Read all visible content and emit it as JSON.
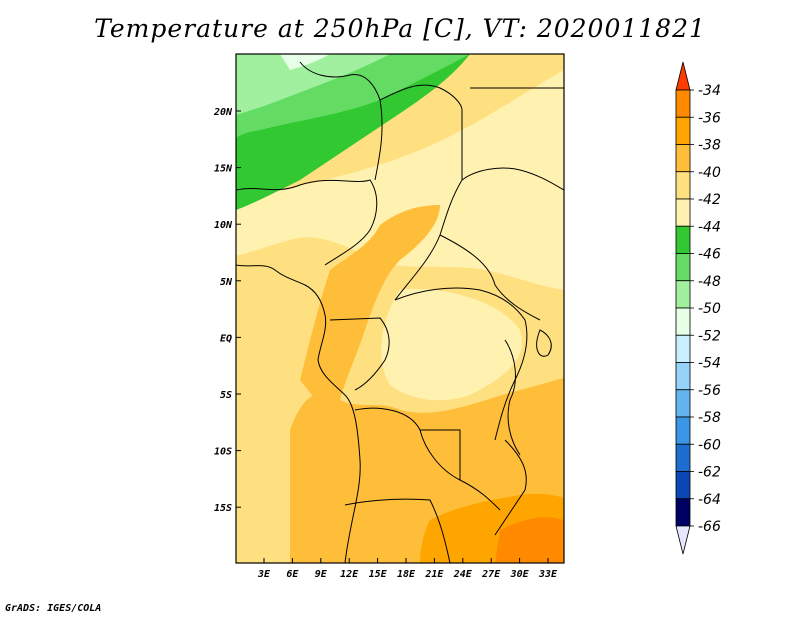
{
  "title": "Temperature at 250hPa [C], VT: 2020011821",
  "credit": "GrADS: IGES/COLA",
  "map": {
    "lon_ticks": [
      "3E",
      "6E",
      "9E",
      "12E",
      "15E",
      "18E",
      "21E",
      "24E",
      "27E",
      "30E",
      "33E"
    ],
    "lat_ticks": [
      "20N",
      "15N",
      "10N",
      "5N",
      "EQ",
      "5S",
      "10S",
      "15S"
    ],
    "region": "Central Africa"
  },
  "colorbar": {
    "labels": [
      "-34",
      "-36",
      "-38",
      "-40",
      "-42",
      "-44",
      "-46",
      "-48",
      "-50",
      "-52",
      "-54",
      "-56",
      "-58",
      "-60",
      "-62",
      "-64",
      "-66"
    ],
    "colors": [
      "#ff5500",
      "#ff8a00",
      "#ffa500",
      "#ffbe3a",
      "#ffe080",
      "#fff2b0",
      "#32c832",
      "#64dc64",
      "#a0f0a0",
      "#e6ffe6",
      "#c8f0ff",
      "#96d2fa",
      "#64b4f0",
      "#3c96e6",
      "#1e6ed2",
      "#0a46b4",
      "#000064"
    ],
    "top_arrow_color": "#ff3c00",
    "bottom_arrow_color": "#e6e6ff"
  }
}
